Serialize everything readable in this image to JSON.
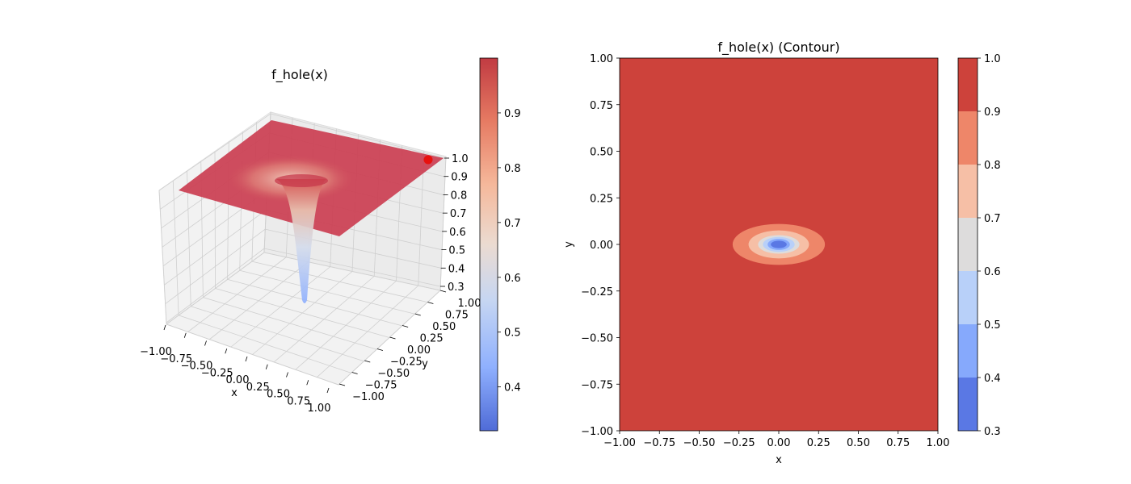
{
  "chart_data": [
    {
      "type": "surface3d",
      "title": "f_hole(x)",
      "xlabel": "x",
      "ylabel": "y",
      "zlabel": "",
      "xlim": [
        -1.0,
        1.0
      ],
      "ylim": [
        -1.0,
        1.0
      ],
      "zlim": [
        0.3,
        1.0
      ],
      "x_ticks": [
        "−1.00",
        "−0.75",
        "−0.50",
        "−0.25",
        "0.00",
        "0.25",
        "0.50",
        "0.75",
        "1.00"
      ],
      "y_ticks": [
        "−1.00",
        "−0.75",
        "−0.50",
        "−0.25",
        "0.00",
        "0.25",
        "0.50",
        "0.75",
        "1.00"
      ],
      "z_ticks": [
        "0.3",
        "0.4",
        "0.5",
        "0.6",
        "0.7",
        "0.8",
        "0.9",
        "1.0"
      ],
      "surface": {
        "plateau_value": 1.0,
        "minimum_value": 0.32,
        "minimum_at": [
          0.0,
          0.0
        ]
      },
      "marked_point": {
        "x": 1.0,
        "y": 1.0,
        "z": 1.0,
        "color": "#e8110f"
      },
      "colorbar": {
        "ticks": [
          "0.4",
          "0.5",
          "0.6",
          "0.7",
          "0.8",
          "0.9"
        ],
        "range": [
          0.32,
          1.0
        ],
        "colormap": "coolwarm"
      },
      "grid": true
    },
    {
      "type": "contour",
      "title": "f_hole(x) (Contour)",
      "xlabel": "x",
      "ylabel": "y",
      "xlim": [
        -1.0,
        1.0
      ],
      "ylim": [
        -1.0,
        1.0
      ],
      "x_ticks": [
        "−1.00",
        "−0.75",
        "−0.50",
        "−0.25",
        "0.00",
        "0.25",
        "0.50",
        "0.75",
        "1.00"
      ],
      "y_ticks": [
        "−1.00",
        "−0.75",
        "−0.50",
        "−0.25",
        "0.00",
        "0.25",
        "0.50",
        "0.75",
        "1.00"
      ],
      "levels": [
        0.3,
        0.4,
        0.5,
        0.6,
        0.7,
        0.8,
        0.9,
        1.0
      ],
      "level_colors": [
        "#5a78e4",
        "#86a9fc",
        "#b8d0f9",
        "#dddcdc",
        "#f6bfa6",
        "#ee8669",
        "#cd423b"
      ],
      "regions": [
        {
          "level": "0.9-1.0",
          "rx": 1.0,
          "ry": 1.0
        },
        {
          "level": "0.8-0.9",
          "rx": 0.29,
          "ry": 0.11
        },
        {
          "level": "0.7-0.8",
          "rx": 0.19,
          "ry": 0.075
        },
        {
          "level": "0.6-0.7",
          "rx": 0.13,
          "ry": 0.05
        },
        {
          "level": "0.5-0.6",
          "rx": 0.1,
          "ry": 0.04
        },
        {
          "level": "0.4-0.5",
          "rx": 0.07,
          "ry": 0.03
        },
        {
          "level": "0.3-0.4",
          "rx": 0.05,
          "ry": 0.02
        }
      ],
      "colorbar": {
        "ticks": [
          "0.3",
          "0.4",
          "0.5",
          "0.6",
          "0.7",
          "0.8",
          "0.9",
          "1.0"
        ]
      },
      "grid": false
    }
  ]
}
